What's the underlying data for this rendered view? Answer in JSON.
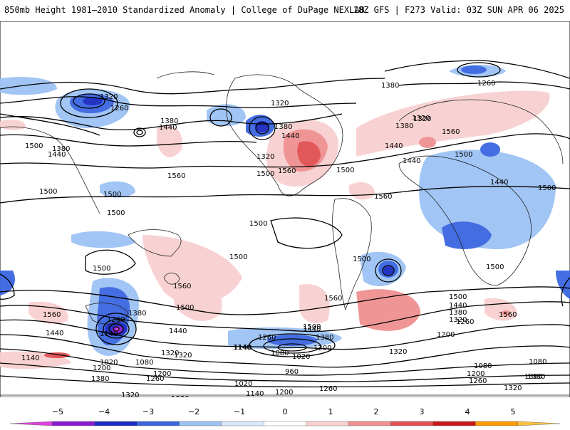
{
  "header": {
    "title": "850mb Height 1981–2010 Standardized Anomaly | College of DuPage NEXLAB",
    "run_info": "18Z GFS | F273 Valid: 03Z SUN APR 06 2025"
  },
  "colorbar": {
    "labels": [
      "−5",
      "−4",
      "−3",
      "−2",
      "−1",
      "0",
      "1",
      "2",
      "3",
      "4",
      "5"
    ],
    "colors": [
      "#e040e0",
      "#8a1ad0",
      "#1a2ac0",
      "#3a66e0",
      "#9cc2f4",
      "#d8e8fa",
      "#ffffff",
      "#f8d0d0",
      "#f09090",
      "#e05050",
      "#c81818",
      "#ff9a00",
      "#ffc040"
    ]
  },
  "contour_labels": [
    "1320",
    "1380",
    "1260",
    "1260",
    "1320",
    "1380",
    "1440",
    "1500",
    "1500",
    "1380",
    "1440",
    "1380",
    "1320",
    "1440",
    "1500",
    "1500",
    "1560",
    "1500",
    "1320",
    "1440",
    "1560",
    "1560",
    "1440",
    "1380",
    "1320",
    "1500",
    "1560",
    "1440",
    "1500",
    "1500",
    "1500",
    "1500",
    "1500",
    "1440",
    "1500",
    "1560",
    "1500",
    "1500",
    "1560",
    "1560",
    "1500",
    "1440",
    "1380",
    "1320",
    "1260",
    "1200",
    "1140",
    "1080",
    "1020",
    "1140",
    "1200",
    "1260",
    "1320",
    "1380",
    "1440",
    "1080",
    "1020",
    "960",
    "1200",
    "1140",
    "1080",
    "1020",
    "1200",
    "1260",
    "1320",
    "1380",
    "1320",
    "1380",
    "1260",
    "1200",
    "1140",
    "1200",
    "1260",
    "1320",
    "1380",
    "1440",
    "1500",
    "1560",
    "1260",
    "1140",
    "1080",
    "1320",
    "1380",
    "1380"
  ]
}
